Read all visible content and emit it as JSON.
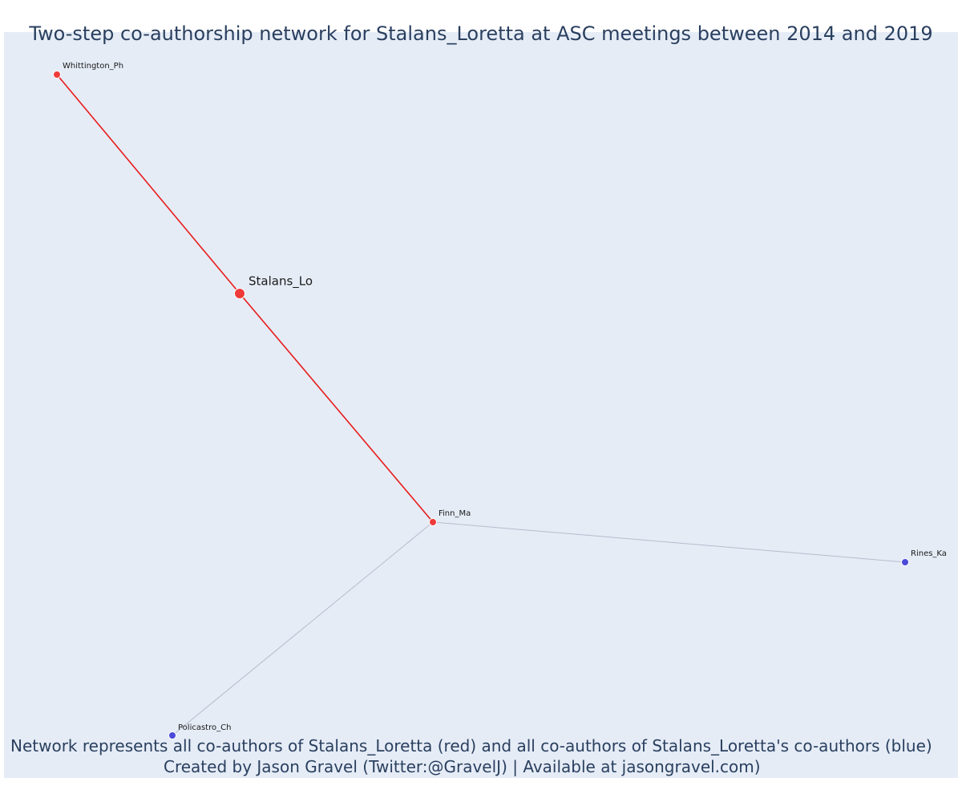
{
  "title": "Two-step co-authorship network for Stalans_Loretta at ASC meetings between 2014 and 2019",
  "footer": {
    "line1": "Network represents all co-authors of Stalans_Loretta (red) and all co-authors of Stalans_Loretta's co-authors (blue)",
    "line2": "Created by Jason Gravel (Twitter:@GravelJ) | Available at jasongravel.com)"
  },
  "colors": {
    "plot_background": "#e5ecf6",
    "first_degree": "#ef3a3a",
    "second_degree": "#4a4ad9",
    "first_degree_edge": "#e81c1c",
    "second_degree_edge": "#b8bccc",
    "label": "#1a1a1a",
    "title": "#2a3f5f"
  },
  "network": {
    "nodes": [
      {
        "id": "Whittington_Ph",
        "label": "Whittington_Ph",
        "group": "first-degree",
        "focal": false
      },
      {
        "id": "Stalans_Lo",
        "label": "Stalans_Lo",
        "group": "first-degree",
        "focal": true
      },
      {
        "id": "Finn_Ma",
        "label": "Finn_Ma",
        "group": "first-degree",
        "focal": false
      },
      {
        "id": "Rines_Ka",
        "label": "Rines_Ka",
        "group": "second-degree",
        "focal": false
      },
      {
        "id": "Policastro_Ch",
        "label": "Policastro_Ch",
        "group": "second-degree",
        "focal": false
      }
    ],
    "edges": [
      {
        "source": "Whittington_Ph",
        "target": "Stalans_Lo",
        "group": "first-degree"
      },
      {
        "source": "Stalans_Lo",
        "target": "Finn_Ma",
        "group": "first-degree"
      },
      {
        "source": "Finn_Ma",
        "target": "Rines_Ka",
        "group": "second-degree"
      },
      {
        "source": "Finn_Ma",
        "target": "Policastro_Ch",
        "group": "second-degree"
      }
    ]
  }
}
